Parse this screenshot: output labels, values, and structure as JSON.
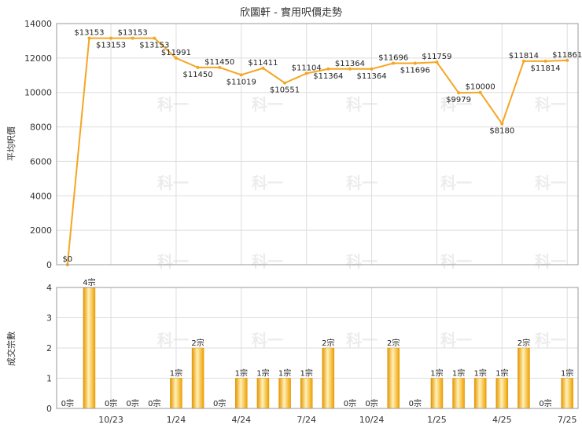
{
  "chart_data": [
    {
      "type": "line",
      "title": "欣圖軒 - 實用呎價走勢",
      "ylabel": "平均呎價",
      "ylim": [
        0,
        14000
      ],
      "yticks": [
        0,
        2000,
        4000,
        6000,
        8000,
        10000,
        12000,
        14000
      ],
      "grid": true,
      "color": "#f5a623",
      "points": [
        {
          "x": 0,
          "y": 0,
          "label": "$0"
        },
        {
          "x": 1,
          "y": 13153,
          "label": "$13153"
        },
        {
          "x": 2,
          "y": 13153,
          "label": "$13153"
        },
        {
          "x": 3,
          "y": 13153,
          "label": "$13153"
        },
        {
          "x": 4,
          "y": 13153,
          "label": "$13153"
        },
        {
          "x": 5,
          "y": 11991,
          "label": "$11991"
        },
        {
          "x": 6,
          "y": 11450,
          "label": "$11450"
        },
        {
          "x": 7,
          "y": 11450,
          "label": "$11450"
        },
        {
          "x": 8,
          "y": 11019,
          "label": "$11019"
        },
        {
          "x": 9,
          "y": 11411,
          "label": "$11411"
        },
        {
          "x": 10,
          "y": 10551,
          "label": "$10551"
        },
        {
          "x": 11,
          "y": 11104,
          "label": "$11104"
        },
        {
          "x": 12,
          "y": 11364,
          "label": "$11364"
        },
        {
          "x": 13,
          "y": 11364,
          "label": "$11364"
        },
        {
          "x": 14,
          "y": 11364,
          "label": "$11364"
        },
        {
          "x": 15,
          "y": 11696,
          "label": "$11696"
        },
        {
          "x": 16,
          "y": 11696,
          "label": "$11696"
        },
        {
          "x": 17,
          "y": 11759,
          "label": "$11759"
        },
        {
          "x": 18,
          "y": 9979,
          "label": "$9979"
        },
        {
          "x": 19,
          "y": 10000,
          "label": "$10000"
        },
        {
          "x": 20,
          "y": 8180,
          "label": "$8180"
        },
        {
          "x": 21,
          "y": 11814,
          "label": "$11814"
        },
        {
          "x": 22,
          "y": 11814,
          "label": "$11814"
        },
        {
          "x": 23,
          "y": 11861,
          "label": "$11861"
        }
      ]
    },
    {
      "type": "bar",
      "ylabel": "成交宗數",
      "ylim": [
        0,
        4
      ],
      "yticks": [
        0,
        1,
        2,
        3,
        4
      ],
      "grid": true,
      "color": "#f5a623",
      "values": [
        0,
        4,
        0,
        0,
        0,
        1,
        2,
        0,
        1,
        1,
        1,
        1,
        2,
        0,
        0,
        2,
        0,
        1,
        1,
        1,
        1,
        2,
        0,
        1
      ],
      "value_labels": [
        "0宗",
        "4宗",
        "0宗",
        "0宗",
        "0宗",
        "1宗",
        "2宗",
        "0宗",
        "1宗",
        "1宗",
        "1宗",
        "1宗",
        "2宗",
        "0宗",
        "0宗",
        "2宗",
        "0宗",
        "1宗",
        "1宗",
        "1宗",
        "1宗",
        "2宗",
        "0宗",
        "1宗"
      ],
      "xticks": [
        {
          "x": 2,
          "label": "10/23"
        },
        {
          "x": 5,
          "label": "1/24"
        },
        {
          "x": 8,
          "label": "4/24"
        },
        {
          "x": 11,
          "label": "7/24"
        },
        {
          "x": 14,
          "label": "10/24"
        },
        {
          "x": 17,
          "label": "1/25"
        },
        {
          "x": 20,
          "label": "4/25"
        },
        {
          "x": 23,
          "label": "7/25"
        }
      ]
    }
  ],
  "watermark": "科一"
}
